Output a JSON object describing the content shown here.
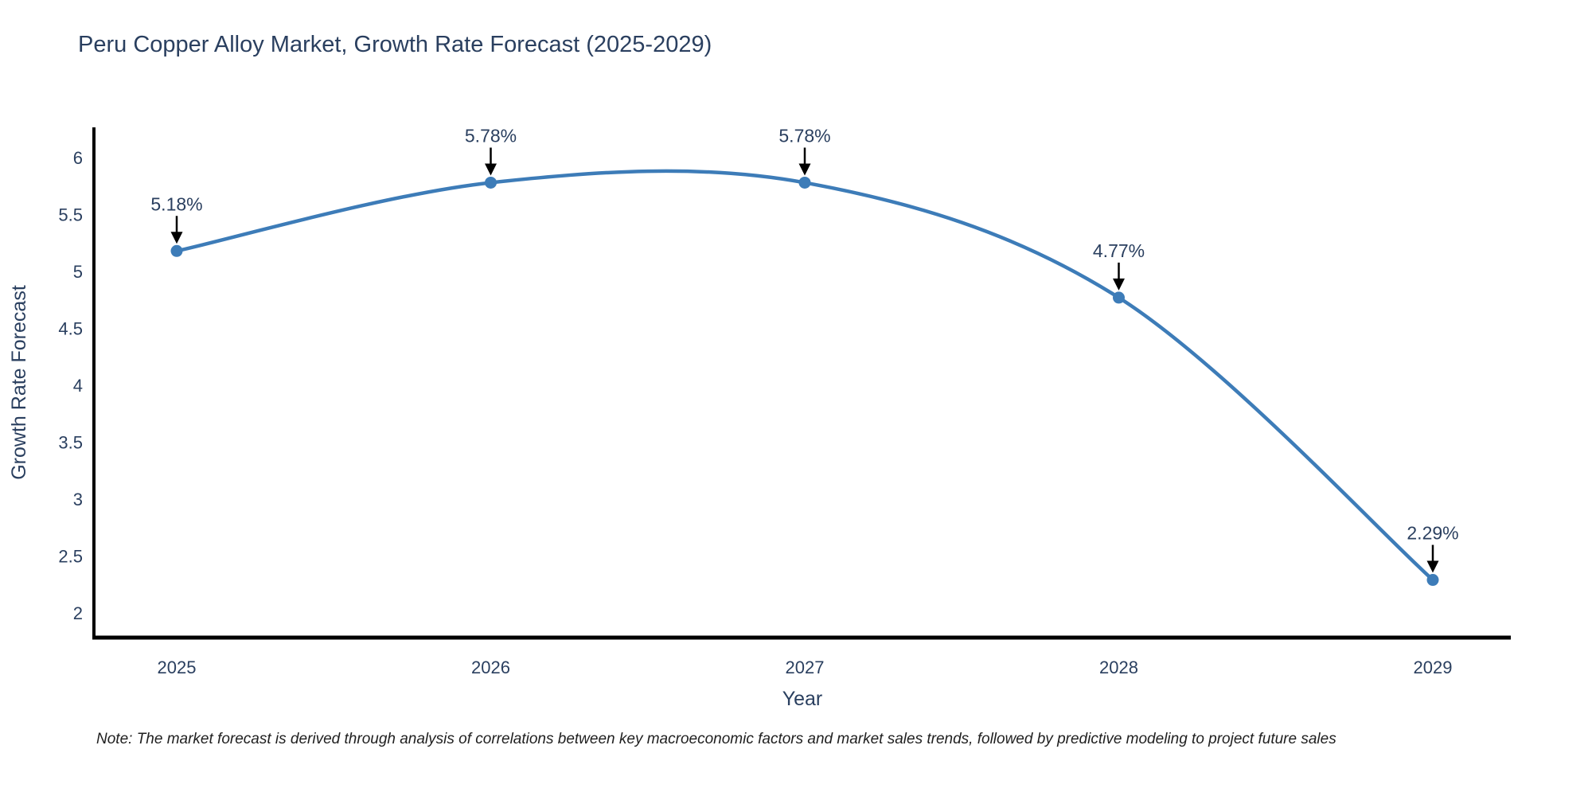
{
  "chart_data": {
    "type": "line",
    "title": "Peru Copper Alloy Market, Growth Rate Forecast (2025-2029)",
    "xlabel": "Year",
    "ylabel": "Growth Rate Forecast",
    "categories": [
      "2025",
      "2026",
      "2027",
      "2028",
      "2029"
    ],
    "series": [
      {
        "name": "Growth Rate Forecast",
        "values": [
          5.18,
          5.78,
          5.78,
          4.77,
          2.29
        ]
      }
    ],
    "point_labels": [
      "5.18%",
      "5.78%",
      "5.78%",
      "4.77%",
      "2.29%"
    ],
    "ytick_values": [
      2,
      2.5,
      3,
      3.5,
      4,
      4.5,
      5,
      5.5,
      6
    ],
    "ytick_labels": [
      "2",
      "2.5",
      "3",
      "3.5",
      "4",
      "4.5",
      "5",
      "5.5",
      "6"
    ],
    "ylim": [
      1.78,
      6.28
    ],
    "line_shape": "spline",
    "grid": false,
    "legend_position": "none",
    "colors": {
      "line": "#3d7cb8",
      "marker": "#3d7cb8",
      "axis": "#000000",
      "text": "#2a3f5f",
      "annotation_text": "#2a3f5f",
      "annotation_arrow": "#000000",
      "background": "#ffffff"
    }
  },
  "note": {
    "text": "Note: The market forecast is derived through analysis of correlations between key macroeconomic factors and market sales trends, followed by predictive modeling to project future sales"
  }
}
